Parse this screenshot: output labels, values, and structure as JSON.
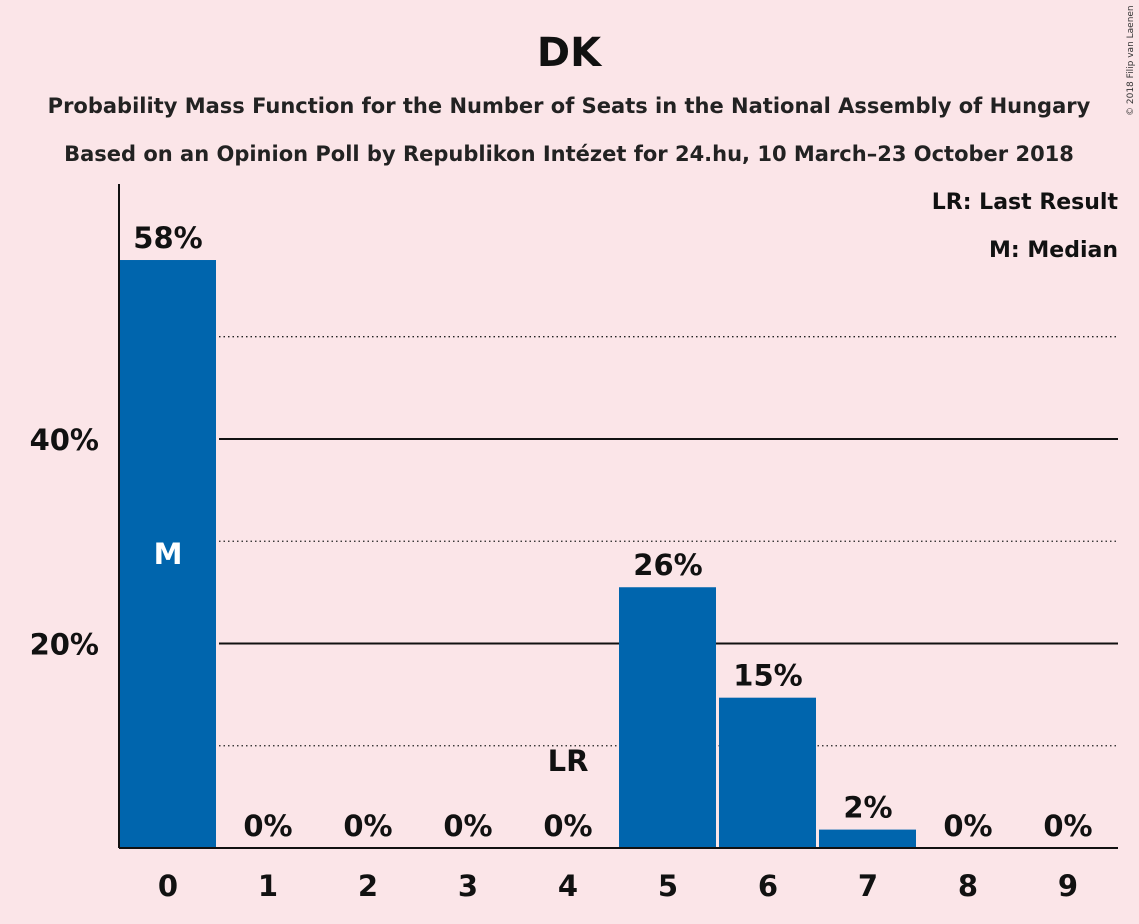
{
  "title": "DK",
  "subtitle1": "Probability Mass Function for the Number of Seats in the National Assembly of Hungary",
  "subtitle2": "Based on an Opinion Poll by Republikon Intézet for 24.hu, 10 March–23 October 2018",
  "legend": {
    "last_result": "LR: Last Result",
    "median": "M: Median"
  },
  "copyright": "© 2018 Filip van Laenen",
  "colors": {
    "background": "#fbe5e8",
    "bar": "#0065ad"
  },
  "chart_data": {
    "type": "bar",
    "categories": [
      "0",
      "1",
      "2",
      "3",
      "4",
      "5",
      "6",
      "7",
      "8",
      "9"
    ],
    "values": [
      57.5,
      0,
      0,
      0,
      0,
      25.5,
      14.7,
      1.8,
      0,
      0
    ],
    "labels": [
      "58%",
      "0%",
      "0%",
      "0%",
      "0%",
      "26%",
      "15%",
      "2%",
      "0%",
      "0%"
    ],
    "ylim": [
      0,
      62
    ],
    "y_ticks": [
      {
        "value": 20,
        "label": "20%"
      },
      {
        "value": 40,
        "label": "40%"
      }
    ],
    "minor_gridlines": [
      10,
      30,
      50
    ],
    "median_category": "0",
    "median_marker": "M",
    "last_result_category": "4",
    "last_result_marker": "LR",
    "grid": true,
    "legend_position": "top-right"
  }
}
